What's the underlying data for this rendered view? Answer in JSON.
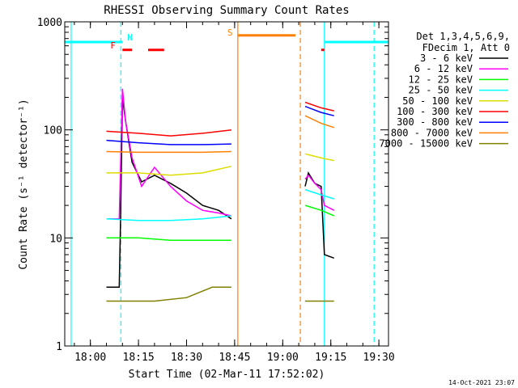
{
  "chart_data": {
    "type": "line",
    "title": "RHESSI Observing Summary Count Rates",
    "xlabel": "Start Time (02-Mar-11 17:52:02)",
    "ylabel": "Count Rate (s⁻¹ detector⁻¹)",
    "x_unit": "minutes",
    "x_range": [
      "17:52",
      "19:33"
    ],
    "y_scale": "log",
    "ylim": [
      1,
      1000
    ],
    "x_ticks": [
      "18:00",
      "18:15",
      "18:30",
      "18:45",
      "19:00",
      "19:15",
      "19:30"
    ],
    "y_ticks": [
      "1",
      "10",
      "100",
      "1000"
    ],
    "legend": {
      "position": "right",
      "header": [
        "Det 1,3,4,5,6,9,",
        "FDecim 1, Att 0"
      ],
      "items": [
        {
          "label": "3 - 6 keV",
          "color": "#000000"
        },
        {
          "label": "6 - 12 keV",
          "color": "#ff00ff"
        },
        {
          "label": "12 - 25 keV",
          "color": "#00ff00"
        },
        {
          "label": "25 - 50 keV",
          "color": "#00ffff"
        },
        {
          "label": "50 - 100 keV",
          "color": "#dddd00"
        },
        {
          "label": "100 - 300 keV",
          "color": "#ff0000"
        },
        {
          "label": "300 - 800 keV",
          "color": "#0000ff"
        },
        {
          "label": "800 - 7000 keV",
          "color": "#ff8000"
        },
        {
          "label": "7000 - 15000 keV",
          "color": "#808000"
        }
      ]
    },
    "series": [
      {
        "name": "3 - 6 keV",
        "color": "#000000",
        "segments": [
          [
            [
              "18:05",
              3.5
            ],
            [
              "18:09",
              3.5
            ],
            [
              "18:09.5",
              20
            ],
            [
              "18:10",
              200
            ],
            [
              "18:11",
              120
            ],
            [
              "18:13",
              50
            ],
            [
              "18:16",
              33
            ],
            [
              "18:20",
              38
            ],
            [
              "18:25",
              32
            ],
            [
              "18:30",
              26
            ],
            [
              "18:35",
              20
            ],
            [
              "18:40",
              18
            ],
            [
              "18:44",
              15
            ]
          ],
          [
            [
              "19:07",
              30
            ],
            [
              "19:08",
              40
            ],
            [
              "19:10",
              32
            ],
            [
              "19:12",
              30
            ],
            [
              "19:13",
              7
            ],
            [
              "19:16",
              6.5
            ]
          ]
        ]
      },
      {
        "name": "6 - 12 keV",
        "color": "#ff00ff",
        "segments": [
          [
            [
              "18:05",
              15
            ],
            [
              "18:09",
              15
            ],
            [
              "18:10",
              240
            ],
            [
              "18:11",
              120
            ],
            [
              "18:13",
              55
            ],
            [
              "18:16",
              30
            ],
            [
              "18:20",
              45
            ],
            [
              "18:25",
              30
            ],
            [
              "18:30",
              22
            ],
            [
              "18:35",
              18
            ],
            [
              "18:40",
              17
            ],
            [
              "18:44",
              16
            ]
          ],
          [
            [
              "19:07",
              35
            ],
            [
              "19:08",
              38
            ],
            [
              "19:10",
              32
            ],
            [
              "19:12",
              28
            ],
            [
              "19:13",
              20
            ],
            [
              "19:16",
              18
            ]
          ]
        ]
      },
      {
        "name": "12 - 25 keV",
        "color": "#00ff00",
        "segments": [
          [
            [
              "18:05",
              10
            ],
            [
              "18:15",
              10
            ],
            [
              "18:25",
              9.5
            ],
            [
              "18:35",
              9.5
            ],
            [
              "18:44",
              9.5
            ]
          ],
          [
            [
              "19:07",
              20
            ],
            [
              "19:12",
              18
            ],
            [
              "19:16",
              16
            ]
          ]
        ]
      },
      {
        "name": "25 - 50 keV",
        "color": "#00ffff",
        "segments": [
          [
            [
              "18:05",
              15
            ],
            [
              "18:15",
              14.5
            ],
            [
              "18:25",
              14.5
            ],
            [
              "18:35",
              15
            ],
            [
              "18:44",
              16
            ]
          ],
          [
            [
              "19:07",
              28
            ],
            [
              "19:12",
              25
            ],
            [
              "19:16",
              23
            ]
          ]
        ]
      },
      {
        "name": "50 - 100 keV",
        "color": "#dddd00",
        "segments": [
          [
            [
              "18:05",
              40
            ],
            [
              "18:15",
              40
            ],
            [
              "18:25",
              38
            ],
            [
              "18:35",
              40
            ],
            [
              "18:44",
              46
            ]
          ],
          [
            [
              "19:07",
              60
            ],
            [
              "19:12",
              55
            ],
            [
              "19:16",
              52
            ]
          ]
        ]
      },
      {
        "name": "100 - 300 keV",
        "color": "#ff0000",
        "segments": [
          [
            [
              "18:05",
              97
            ],
            [
              "18:15",
              93
            ],
            [
              "18:25",
              88
            ],
            [
              "18:35",
              93
            ],
            [
              "18:44",
              100
            ]
          ],
          [
            [
              "19:07",
              180
            ],
            [
              "19:12",
              160
            ],
            [
              "19:16",
              150
            ]
          ]
        ]
      },
      {
        "name": "300 - 800 keV",
        "color": "#0000ff",
        "segments": [
          [
            [
              "18:05",
              80
            ],
            [
              "18:15",
              76
            ],
            [
              "18:25",
              73
            ],
            [
              "18:35",
              73
            ],
            [
              "18:44",
              74
            ]
          ],
          [
            [
              "19:07",
              165
            ],
            [
              "19:12",
              145
            ],
            [
              "19:16",
              135
            ]
          ]
        ]
      },
      {
        "name": "800 - 7000 keV",
        "color": "#ff8000",
        "segments": [
          [
            [
              "18:05",
              63
            ],
            [
              "18:15",
              62
            ],
            [
              "18:25",
              62
            ],
            [
              "18:35",
              62
            ],
            [
              "18:44",
              63
            ]
          ],
          [
            [
              "19:07",
              135
            ],
            [
              "19:12",
              115
            ],
            [
              "19:16",
              105
            ]
          ]
        ]
      },
      {
        "name": "7000 - 15000 keV",
        "color": "#808000",
        "segments": [
          [
            [
              "18:05",
              2.6
            ],
            [
              "18:20",
              2.6
            ],
            [
              "18:30",
              2.8
            ],
            [
              "18:38",
              3.5
            ],
            [
              "18:44",
              3.5
            ]
          ],
          [
            [
              "19:07",
              2.6
            ],
            [
              "19:16",
              2.6
            ]
          ]
        ]
      }
    ],
    "annotations": [
      {
        "label": "N",
        "color": "#00ffff",
        "x": "18:10"
      },
      {
        "label": "F",
        "color": "#ff0000",
        "x": "18:09"
      },
      {
        "label": "S",
        "color": "#ff8000",
        "x": "18:46"
      }
    ],
    "flag_bars": [
      {
        "color": "#00ffff",
        "x0": "17:52",
        "x1": "18:10",
        "y": 650
      },
      {
        "color": "#00ffff",
        "x0": "19:13",
        "x1": "19:33",
        "y": 650
      },
      {
        "color": "#ff8000",
        "x0": "18:46",
        "x1": "19:04",
        "y": 750
      },
      {
        "color": "#ff0000",
        "x0": "18:10",
        "x1": "18:13",
        "y": 550
      },
      {
        "color": "#ff0000",
        "x0": "18:18",
        "x1": "18:23",
        "y": 550
      },
      {
        "color": "#ff0000",
        "x0": "19:12",
        "x1": "19:13",
        "y": 550
      }
    ],
    "markers": [
      {
        "color": "#00ffff",
        "style": "solid",
        "x": "17:54"
      },
      {
        "color": "#00ffff",
        "style": "dashed",
        "x": "18:09.5"
      },
      {
        "color": "#ff8000",
        "style": "solid",
        "x": "18:46"
      },
      {
        "color": "#ff8000",
        "style": "dashed",
        "x": "19:05.5"
      },
      {
        "color": "#00ffff",
        "style": "solid",
        "x": "19:13"
      },
      {
        "color": "#00ffff",
        "style": "dashed",
        "x": "19:28.5"
      }
    ],
    "footer_timestamp": "14-Oct-2021 23:07"
  }
}
